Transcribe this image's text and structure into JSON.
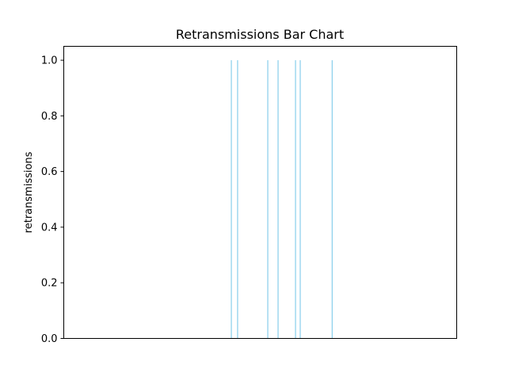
{
  "chart_data": {
    "type": "bar",
    "title": "Retransmissions Bar Chart",
    "xlabel": "",
    "ylabel": "retransmissions",
    "x_ticks_visible": false,
    "x": [
      0.4265,
      0.4424,
      0.5192,
      0.5454,
      0.5898,
      0.6018,
      0.6831
    ],
    "xlim": [
      0,
      1
    ],
    "values": [
      1.0,
      1.0,
      1.0,
      1.0,
      1.0,
      1.0,
      1.0
    ],
    "ylim": [
      0,
      1.05
    ],
    "yticks": [
      0.0,
      0.2,
      0.4,
      0.6,
      0.8,
      1.0
    ],
    "ytick_labels": [
      "0.0",
      "0.2",
      "0.4",
      "0.6",
      "0.8",
      "1.0"
    ],
    "bar_color": "#87ceeb",
    "grid": false,
    "legend": "none"
  }
}
